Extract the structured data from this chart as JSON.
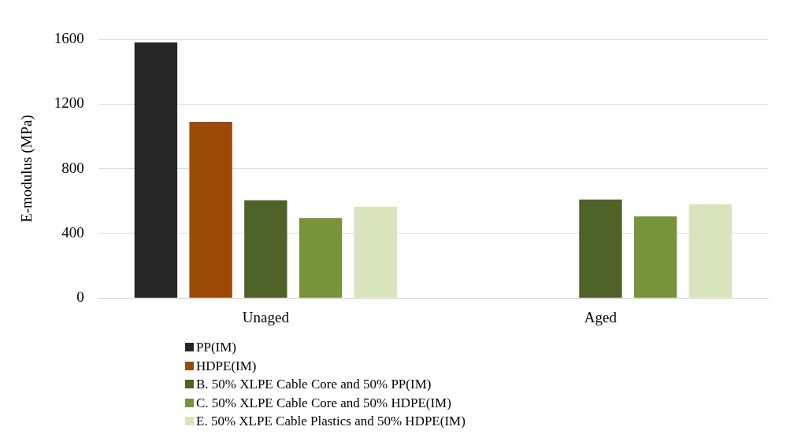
{
  "chart_data": {
    "type": "bar",
    "ylabel": "E-modulus (MPa)",
    "categories": [
      "Unaged",
      "Aged"
    ],
    "series": [
      {
        "name": "PP(IM)",
        "color": "#262626",
        "values": [
          1580,
          null
        ]
      },
      {
        "name": "HDPE(IM)",
        "color": "#9c4a08",
        "values": [
          1090,
          null
        ]
      },
      {
        "name": "B. 50% XLPE Cable Core and 50% PP(IM)",
        "color": "#4f6228",
        "values": [
          605,
          610
        ]
      },
      {
        "name": "C. 50% XLPE Cable Core and 50% HDPE(IM)",
        "color": "#77933c",
        "values": [
          495,
          505
        ]
      },
      {
        "name": "E. 50% XLPE Cable Plastics and 50% HDPE(IM)",
        "color": "#d8e4bc",
        "values": [
          565,
          580
        ]
      }
    ],
    "ylim": [
      0,
      1600
    ],
    "yticks": [
      0,
      400,
      800,
      1200,
      1600
    ],
    "grid": "y",
    "legend": "bottom"
  }
}
